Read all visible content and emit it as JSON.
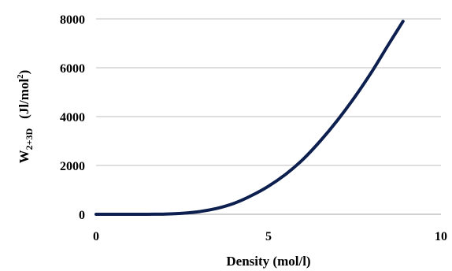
{
  "chart_data": {
    "type": "line",
    "title": "",
    "xlabel": "Density (mol/l)",
    "ylabel": {
      "main": "W",
      "subscript": "2+3D",
      "unit_open": "(Jl/mol",
      "unit_sup": "2",
      "unit_close": ")"
    },
    "xlim": [
      0,
      10
    ],
    "ylim": [
      0,
      8000
    ],
    "x_ticks": [
      0,
      5,
      10
    ],
    "y_ticks": [
      0,
      2000,
      4000,
      6000,
      8000
    ],
    "x_tick_labels": [
      "0",
      "5",
      "10"
    ],
    "y_tick_labels": [
      "0",
      "2000",
      "4000",
      "6000",
      "8000"
    ],
    "grid": "horizontal",
    "legend": "none",
    "series": [
      {
        "color": "#0d1f4f",
        "x": [
          0,
          0.5,
          1.0,
          1.5,
          2.0,
          2.5,
          3.0,
          3.5,
          4.0,
          4.5,
          5.0,
          5.5,
          6.0,
          6.5,
          7.0,
          7.5,
          8.0,
          8.5,
          8.9
        ],
        "y": [
          0,
          0,
          0,
          0,
          10,
          40,
          110,
          240,
          450,
          760,
          1150,
          1640,
          2250,
          3000,
          3850,
          4800,
          5850,
          7000,
          7900
        ]
      }
    ]
  }
}
